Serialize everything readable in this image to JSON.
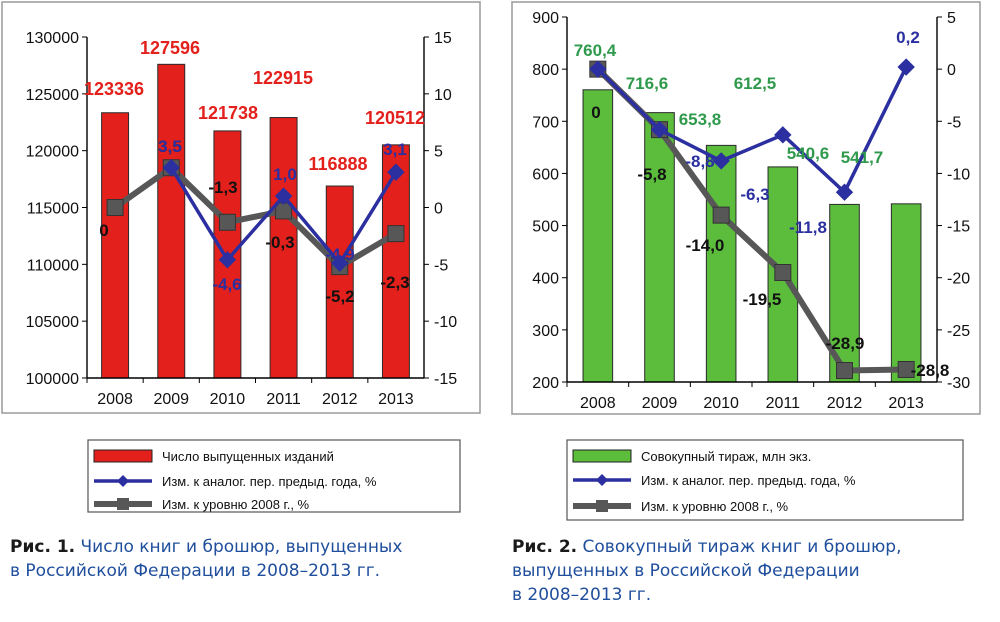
{
  "chart_data": [
    {
      "type": "bar",
      "categories": [
        "2008",
        "2009",
        "2010",
        "2011",
        "2012",
        "2013"
      ],
      "series": [
        {
          "name": "Число выпущенных изданий",
          "axis": "left",
          "kind": "bar",
          "values": [
            123336,
            127596,
            121738,
            122915,
            116888,
            120512
          ],
          "labels": [
            "123336",
            "127596",
            "121738",
            "122915",
            "116888",
            "120512"
          ]
        },
        {
          "name": "Изм. к аналог. пер. предыд. года, %",
          "axis": "right",
          "kind": "line",
          "values": [
            null,
            3.5,
            -4.6,
            1.0,
            -4.9,
            3.1
          ],
          "labels": [
            "",
            "3,5",
            "-4,6",
            "1,0",
            "-4,9",
            "3,1"
          ]
        },
        {
          "name": "Изм. к уровню 2008 г., %",
          "axis": "right",
          "kind": "line",
          "values": [
            0,
            3.5,
            -1.3,
            -0.3,
            -5.2,
            -2.3
          ],
          "labels": [
            "0",
            "3,5",
            "-1,3",
            "-0,3",
            "-5,2",
            "-2,3"
          ]
        }
      ],
      "ylim": [
        100000,
        130000
      ],
      "y_ticks": [
        "100000",
        "105000",
        "110000",
        "115000",
        "120000",
        "125000",
        "130000"
      ],
      "y2lim": [
        -15,
        15
      ],
      "y2_ticks": [
        "-15",
        "-10",
        "-5",
        "0",
        "5",
        "10",
        "15"
      ],
      "grid": false,
      "legend_position": "bottom",
      "colors": {
        "bar": "#e3201b",
        "bar_label": "#e3201b",
        "line1": "#2b2fa0",
        "line2": "#575757"
      },
      "caption": {
        "label": "Рис. 1.",
        "lines": [
          "Число книг и брошюр, выпущенных",
          "в Российской Федерации в 2008–2013 гг."
        ]
      }
    },
    {
      "type": "bar",
      "categories": [
        "2008",
        "2009",
        "2010",
        "2011",
        "2012",
        "2013"
      ],
      "series": [
        {
          "name": "Совокупный тираж, млн экз.",
          "axis": "left",
          "kind": "bar",
          "values": [
            760.4,
            716.6,
            653.8,
            612.5,
            540.6,
            541.7
          ],
          "labels": [
            "760,4",
            "716,6",
            "653,8",
            "612,5",
            "540,6",
            "541,7"
          ]
        },
        {
          "name": "Изм. к аналог. пер. предыд. года, %",
          "axis": "right",
          "kind": "line",
          "values": [
            0,
            -5.8,
            -8.8,
            -6.3,
            -11.8,
            0.2
          ],
          "labels": [
            "",
            "",
            "-8,8",
            "-6,3",
            "-11,8",
            "0,2"
          ]
        },
        {
          "name": "Изм. к уровню 2008 г., %",
          "axis": "right",
          "kind": "line",
          "values": [
            0,
            -5.8,
            -14.0,
            -19.5,
            -28.9,
            -28.8
          ],
          "labels": [
            "0",
            "-5,8",
            "-14,0",
            "-19,5",
            "-28,9",
            "-28,8"
          ]
        }
      ],
      "ylim": [
        200,
        900
      ],
      "y_ticks": [
        "200",
        "300",
        "400",
        "500",
        "600",
        "700",
        "800",
        "900"
      ],
      "y2lim": [
        -30,
        5
      ],
      "y2_ticks": [
        "-30",
        "-25",
        "-20",
        "-15",
        "-10",
        "-5",
        "0",
        "5"
      ],
      "grid": false,
      "legend_position": "bottom",
      "colors": {
        "bar": "#5cbc3c",
        "bar_label": "#2f9a4c",
        "line1": "#2b2fa0",
        "line2": "#575757"
      },
      "caption": {
        "label": "Рис. 2.",
        "lines": [
          "Совокупный тираж книг и брошюр,",
          "выпущенных в Российской Федерации",
          "в 2008–2013 гг."
        ]
      }
    }
  ]
}
